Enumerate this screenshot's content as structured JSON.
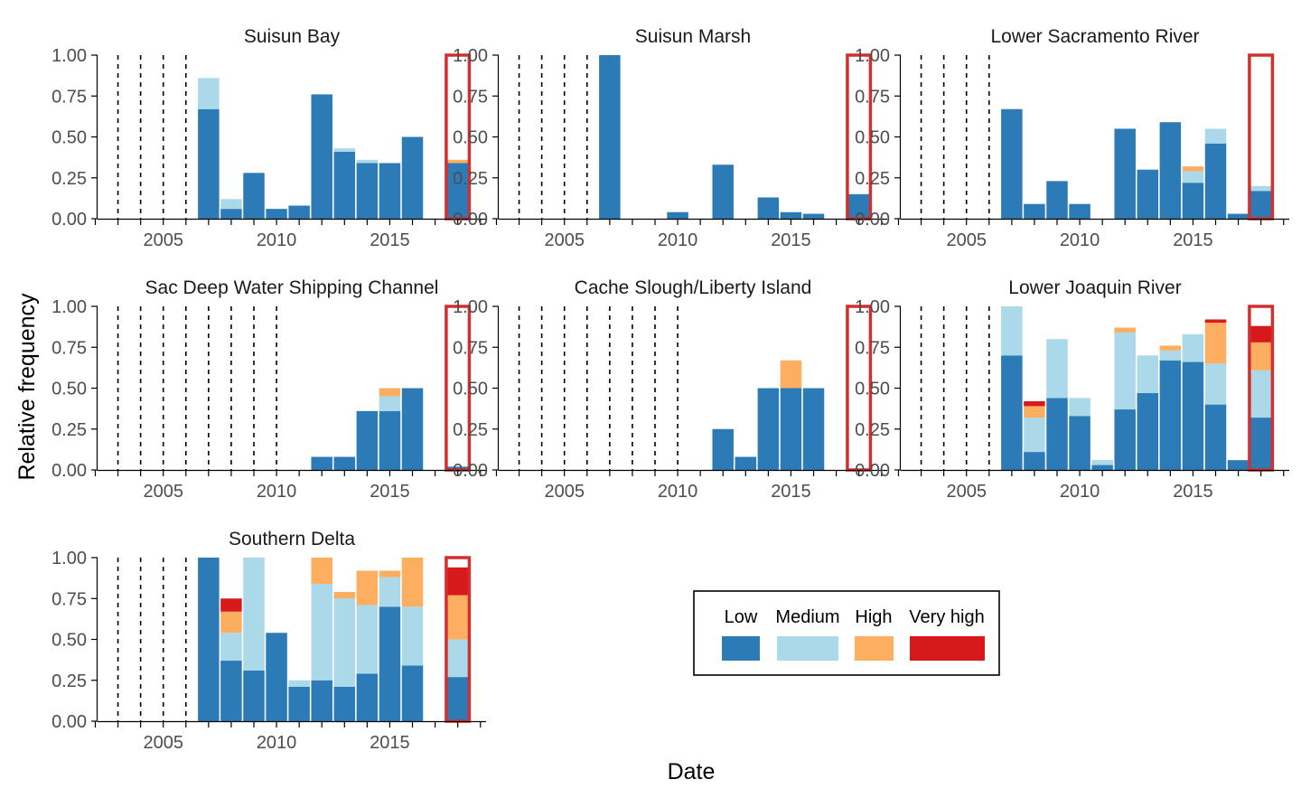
{
  "chart_data": {
    "type": "bar",
    "stacked": true,
    "xlabel": "Date",
    "ylabel": "Relative frequency",
    "x_ticks": [
      2005,
      2010,
      2015
    ],
    "x_range": [
      2002,
      2019
    ],
    "y_ticks": [
      "0.00",
      "0.25",
      "0.50",
      "0.75",
      "1.00"
    ],
    "ylim": [
      0,
      1
    ],
    "grid": false,
    "legend_position": "bottom-right",
    "categories": [
      {
        "name": "Low",
        "color": "#2c7bb6"
      },
      {
        "name": "Medium",
        "color": "#abd9e9"
      },
      {
        "name": "High",
        "color": "#fdae61"
      },
      {
        "name": "Very high",
        "color": "#d7191c"
      }
    ],
    "highlight": {
      "year": 2018,
      "color": "#d32f2f"
    },
    "panels": [
      {
        "title": "Suisun Bay",
        "dashed_years": [
          2003,
          2004,
          2005,
          2006
        ],
        "bars": [
          {
            "year": 2007,
            "values": [
              0.67,
              0.19,
              0,
              0
            ]
          },
          {
            "year": 2008,
            "values": [
              0.06,
              0.06,
              0,
              0
            ]
          },
          {
            "year": 2009,
            "values": [
              0.28,
              0,
              0,
              0
            ]
          },
          {
            "year": 2010,
            "values": [
              0.06,
              0,
              0,
              0
            ]
          },
          {
            "year": 2011,
            "values": [
              0.08,
              0,
              0,
              0
            ]
          },
          {
            "year": 2012,
            "values": [
              0.76,
              0,
              0,
              0
            ]
          },
          {
            "year": 2013,
            "values": [
              0.41,
              0.02,
              0,
              0
            ]
          },
          {
            "year": 2014,
            "values": [
              0.34,
              0.02,
              0,
              0
            ]
          },
          {
            "year": 2015,
            "values": [
              0.34,
              0,
              0,
              0
            ]
          },
          {
            "year": 2016,
            "values": [
              0.5,
              0,
              0,
              0
            ]
          },
          {
            "year": 2018,
            "values": [
              0.34,
              0,
              0.02,
              0
            ]
          }
        ]
      },
      {
        "title": "Suisun Marsh",
        "dashed_years": [
          2003,
          2004,
          2005,
          2006
        ],
        "bars": [
          {
            "year": 2007,
            "values": [
              1.0,
              0,
              0,
              0
            ]
          },
          {
            "year": 2010,
            "values": [
              0.04,
              0,
              0,
              0
            ]
          },
          {
            "year": 2012,
            "values": [
              0.33,
              0,
              0,
              0
            ]
          },
          {
            "year": 2014,
            "values": [
              0.13,
              0,
              0,
              0
            ]
          },
          {
            "year": 2015,
            "values": [
              0.04,
              0,
              0,
              0
            ]
          },
          {
            "year": 2016,
            "values": [
              0.03,
              0,
              0,
              0
            ]
          },
          {
            "year": 2018,
            "values": [
              0.15,
              0,
              0,
              0
            ]
          }
        ]
      },
      {
        "title": "Lower Sacramento River",
        "dashed_years": [
          2003,
          2004,
          2005,
          2006
        ],
        "bars": [
          {
            "year": 2007,
            "values": [
              0.67,
              0,
              0,
              0
            ]
          },
          {
            "year": 2008,
            "values": [
              0.09,
              0,
              0,
              0
            ]
          },
          {
            "year": 2009,
            "values": [
              0.23,
              0,
              0,
              0
            ]
          },
          {
            "year": 2010,
            "values": [
              0.09,
              0,
              0,
              0
            ]
          },
          {
            "year": 2012,
            "values": [
              0.55,
              0,
              0,
              0
            ]
          },
          {
            "year": 2013,
            "values": [
              0.3,
              0,
              0,
              0
            ]
          },
          {
            "year": 2014,
            "values": [
              0.59,
              0,
              0,
              0
            ]
          },
          {
            "year": 2015,
            "values": [
              0.22,
              0.07,
              0.03,
              0
            ]
          },
          {
            "year": 2016,
            "values": [
              0.46,
              0.09,
              0,
              0
            ]
          },
          {
            "year": 2017,
            "values": [
              0.03,
              0,
              0,
              0
            ]
          },
          {
            "year": 2018,
            "values": [
              0.17,
              0.03,
              0,
              0
            ]
          }
        ]
      },
      {
        "title": "Sac Deep Water Shipping Channel",
        "dashed_years": [
          2003,
          2004,
          2005,
          2006,
          2007,
          2008,
          2009,
          2010
        ],
        "bars": [
          {
            "year": 2012,
            "values": [
              0.08,
              0,
              0,
              0
            ]
          },
          {
            "year": 2013,
            "values": [
              0.08,
              0,
              0,
              0
            ]
          },
          {
            "year": 2014,
            "values": [
              0.36,
              0,
              0,
              0
            ]
          },
          {
            "year": 2015,
            "values": [
              0.36,
              0.09,
              0.05,
              0
            ]
          },
          {
            "year": 2016,
            "values": [
              0.5,
              0,
              0,
              0
            ]
          },
          {
            "year": 2018,
            "values": [
              0.02,
              0,
              0,
              0
            ]
          }
        ]
      },
      {
        "title": "Cache Slough/Liberty Island",
        "dashed_years": [
          2003,
          2004,
          2005,
          2006,
          2007,
          2008,
          2009,
          2010
        ],
        "bars": [
          {
            "year": 2012,
            "values": [
              0.25,
              0,
              0,
              0
            ]
          },
          {
            "year": 2013,
            "values": [
              0.08,
              0,
              0,
              0
            ]
          },
          {
            "year": 2014,
            "values": [
              0.5,
              0,
              0,
              0
            ]
          },
          {
            "year": 2015,
            "values": [
              0.5,
              0,
              0.17,
              0
            ]
          },
          {
            "year": 2016,
            "values": [
              0.5,
              0,
              0,
              0
            ]
          }
        ]
      },
      {
        "title": "Lower Joaquin River",
        "dashed_years": [
          2003,
          2004,
          2005,
          2006
        ],
        "bars": [
          {
            "year": 2007,
            "values": [
              0.7,
              0.3,
              0,
              0
            ]
          },
          {
            "year": 2008,
            "values": [
              0.11,
              0.21,
              0.07,
              0.03
            ]
          },
          {
            "year": 2009,
            "values": [
              0.44,
              0.36,
              0,
              0
            ]
          },
          {
            "year": 2010,
            "values": [
              0.33,
              0.11,
              0,
              0
            ]
          },
          {
            "year": 2011,
            "values": [
              0.03,
              0.03,
              0,
              0
            ]
          },
          {
            "year": 2012,
            "values": [
              0.37,
              0.47,
              0.03,
              0
            ]
          },
          {
            "year": 2013,
            "values": [
              0.47,
              0.23,
              0,
              0
            ]
          },
          {
            "year": 2014,
            "values": [
              0.67,
              0.06,
              0.03,
              0
            ]
          },
          {
            "year": 2015,
            "values": [
              0.66,
              0.17,
              0,
              0
            ]
          },
          {
            "year": 2016,
            "values": [
              0.4,
              0.25,
              0.25,
              0.02
            ]
          },
          {
            "year": 2017,
            "values": [
              0.06,
              0,
              0,
              0
            ]
          },
          {
            "year": 2018,
            "values": [
              0.32,
              0.29,
              0.17,
              0.1
            ]
          }
        ]
      },
      {
        "title": "Southern Delta",
        "dashed_years": [
          2003,
          2004,
          2005,
          2006
        ],
        "bars": [
          {
            "year": 2007,
            "values": [
              1.0,
              0,
              0,
              0
            ]
          },
          {
            "year": 2008,
            "values": [
              0.37,
              0.17,
              0.13,
              0.08
            ]
          },
          {
            "year": 2009,
            "values": [
              0.31,
              0.69,
              0,
              0
            ]
          },
          {
            "year": 2010,
            "values": [
              0.54,
              0,
              0,
              0
            ]
          },
          {
            "year": 2011,
            "values": [
              0.21,
              0.04,
              0,
              0
            ]
          },
          {
            "year": 2012,
            "values": [
              0.25,
              0.59,
              0.16,
              0
            ]
          },
          {
            "year": 2013,
            "values": [
              0.21,
              0.54,
              0.04,
              0
            ]
          },
          {
            "year": 2014,
            "values": [
              0.29,
              0.42,
              0.21,
              0
            ]
          },
          {
            "year": 2015,
            "values": [
              0.7,
              0.18,
              0.04,
              0
            ]
          },
          {
            "year": 2016,
            "values": [
              0.34,
              0.36,
              0.3,
              0
            ]
          },
          {
            "year": 2018,
            "values": [
              0.27,
              0.23,
              0.27,
              0.17
            ]
          }
        ]
      }
    ]
  }
}
